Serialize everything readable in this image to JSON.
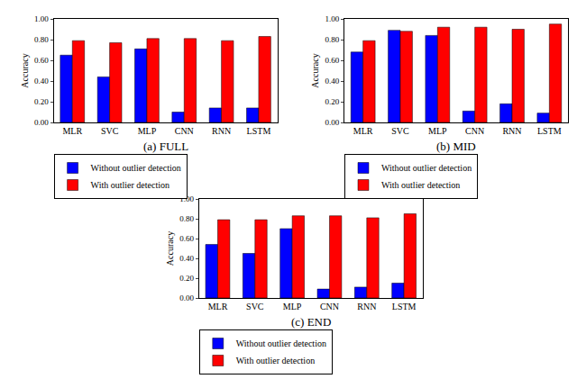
{
  "chart_data": [
    {
      "type": "bar",
      "title": "(a) FULL",
      "ylabel": "Accuracy",
      "categories": [
        "MLR",
        "SVC",
        "MLP",
        "CNN",
        "RNN",
        "LSTM"
      ],
      "series": [
        {
          "name": "Without outlier detection",
          "color": "#0000ff",
          "values": [
            0.65,
            0.44,
            0.71,
            0.1,
            0.14,
            0.14
          ]
        },
        {
          "name": "With outlier detection",
          "color": "#ff0000",
          "values": [
            0.79,
            0.77,
            0.81,
            0.81,
            0.79,
            0.83
          ]
        }
      ],
      "ylim": [
        0,
        1
      ],
      "yticks": [
        {
          "value": 0,
          "label": "0.00"
        },
        {
          "value": 0.2,
          "label": "0.20"
        },
        {
          "value": 0.4,
          "label": "0.40"
        },
        {
          "value": 0.6,
          "label": "0.60"
        },
        {
          "value": 0.8,
          "label": "0.80"
        },
        {
          "value": 1,
          "label": "1.00"
        }
      ],
      "grid": false,
      "legend": "lower left"
    },
    {
      "type": "bar",
      "title": "(b) MID",
      "ylabel": "Accuracy",
      "categories": [
        "MLR",
        "SVC",
        "MLP",
        "CNN",
        "RNN",
        "LSTM"
      ],
      "series": [
        {
          "name": "Without outlier detection",
          "color": "#0000ff",
          "values": [
            0.68,
            0.89,
            0.84,
            0.11,
            0.18,
            0.09
          ]
        },
        {
          "name": "With outlier detection",
          "color": "#ff0000",
          "values": [
            0.79,
            0.88,
            0.92,
            0.92,
            0.9,
            0.95
          ]
        }
      ],
      "ylim": [
        0,
        1
      ],
      "yticks": [
        {
          "value": 0,
          "label": "0.00"
        },
        {
          "value": 0.2,
          "label": "0.20"
        },
        {
          "value": 0.4,
          "label": "0.40"
        },
        {
          "value": 0.6,
          "label": "0.60"
        },
        {
          "value": 0.8,
          "label": "0.80"
        },
        {
          "value": 1,
          "label": "1.00"
        }
      ],
      "grid": false,
      "legend": "lower left"
    },
    {
      "type": "bar",
      "title": "(c) END",
      "ylabel": "Accuracy",
      "categories": [
        "MLR",
        "SVC",
        "MLP",
        "CNN",
        "RNN",
        "LSTM"
      ],
      "series": [
        {
          "name": "Without outlier detection",
          "color": "#0000ff",
          "values": [
            0.54,
            0.45,
            0.7,
            0.09,
            0.11,
            0.15
          ]
        },
        {
          "name": "With outlier detection",
          "color": "#ff0000",
          "values": [
            0.79,
            0.79,
            0.83,
            0.83,
            0.81,
            0.85
          ]
        }
      ],
      "ylim": [
        0,
        1
      ],
      "yticks": [
        {
          "value": 0,
          "label": "0.00"
        },
        {
          "value": 0.2,
          "label": "0.20"
        },
        {
          "value": 0.4,
          "label": "0.40"
        },
        {
          "value": 0.6,
          "label": "0.60"
        },
        {
          "value": 0.8,
          "label": "0.80"
        },
        {
          "value": 1,
          "label": "1.00"
        }
      ],
      "grid": false,
      "legend": "lower left"
    }
  ]
}
